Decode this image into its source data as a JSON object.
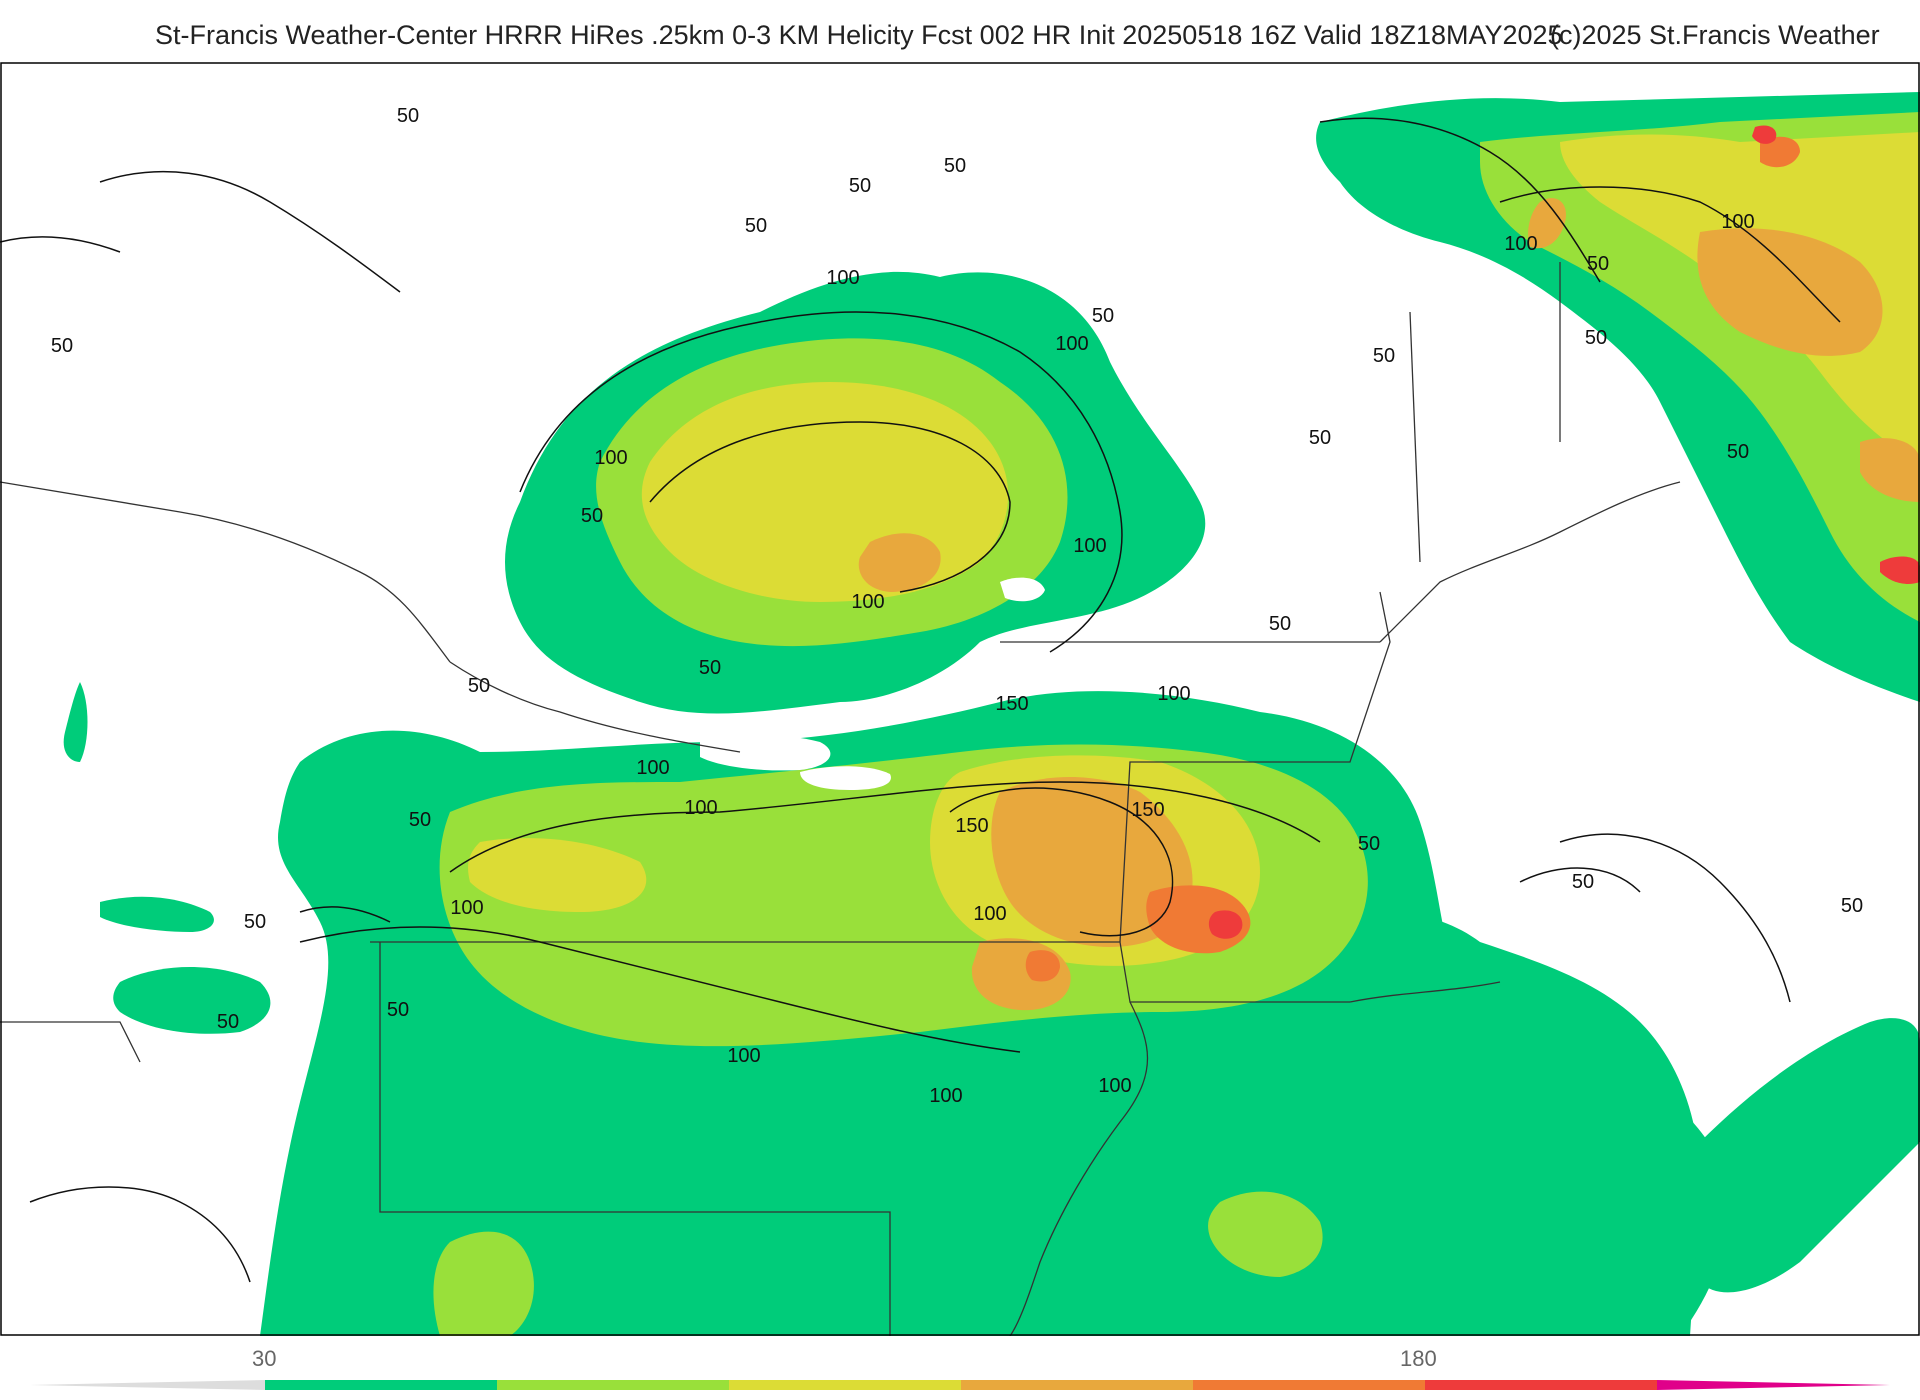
{
  "header": {
    "title": "St-Francis Weather-Center HRRR HiRes .25km 0-3 KM Helicity Fcst 002 HR Init 20250518 16Z  Valid 18Z18MAY2025",
    "copyright": "(c)2025 St.Francis Weather"
  },
  "colors": {
    "background": "#ffffff",
    "level_30": "#00cc7a",
    "level_60": "#99e03a",
    "level_90": "#dcdc35",
    "level_120": "#e8a83d",
    "level_150": "#f07a34",
    "level_180": "#ee3b3b",
    "level_210": "#e0008a",
    "contour": "#111111",
    "border": "#333333"
  },
  "colorbar": {
    "labels": [
      "30",
      "180"
    ],
    "bins": [
      "30",
      "60",
      "90",
      "120",
      "150",
      "180",
      "210"
    ]
  },
  "contours": [
    {
      "label": "50"
    },
    {
      "label": "50"
    },
    {
      "label": "50"
    },
    {
      "label": "50"
    },
    {
      "label": "50"
    },
    {
      "label": "50"
    },
    {
      "label": "50"
    },
    {
      "label": "50"
    },
    {
      "label": "50"
    },
    {
      "label": "50"
    },
    {
      "label": "50"
    },
    {
      "label": "50"
    },
    {
      "label": "50"
    },
    {
      "label": "50"
    },
    {
      "label": "50"
    },
    {
      "label": "50"
    },
    {
      "label": "50"
    },
    {
      "label": "50"
    },
    {
      "label": "50"
    },
    {
      "label": "50"
    },
    {
      "label": "50"
    },
    {
      "label": "50"
    },
    {
      "label": "100"
    },
    {
      "label": "100"
    },
    {
      "label": "100"
    },
    {
      "label": "100"
    },
    {
      "label": "100"
    },
    {
      "label": "100"
    },
    {
      "label": "100"
    },
    {
      "label": "100"
    },
    {
      "label": "100"
    },
    {
      "label": "100"
    },
    {
      "label": "100"
    },
    {
      "label": "100"
    },
    {
      "label": "100"
    },
    {
      "label": "100"
    },
    {
      "label": "100"
    },
    {
      "label": "150"
    },
    {
      "label": "150"
    },
    {
      "label": "150"
    }
  ]
}
